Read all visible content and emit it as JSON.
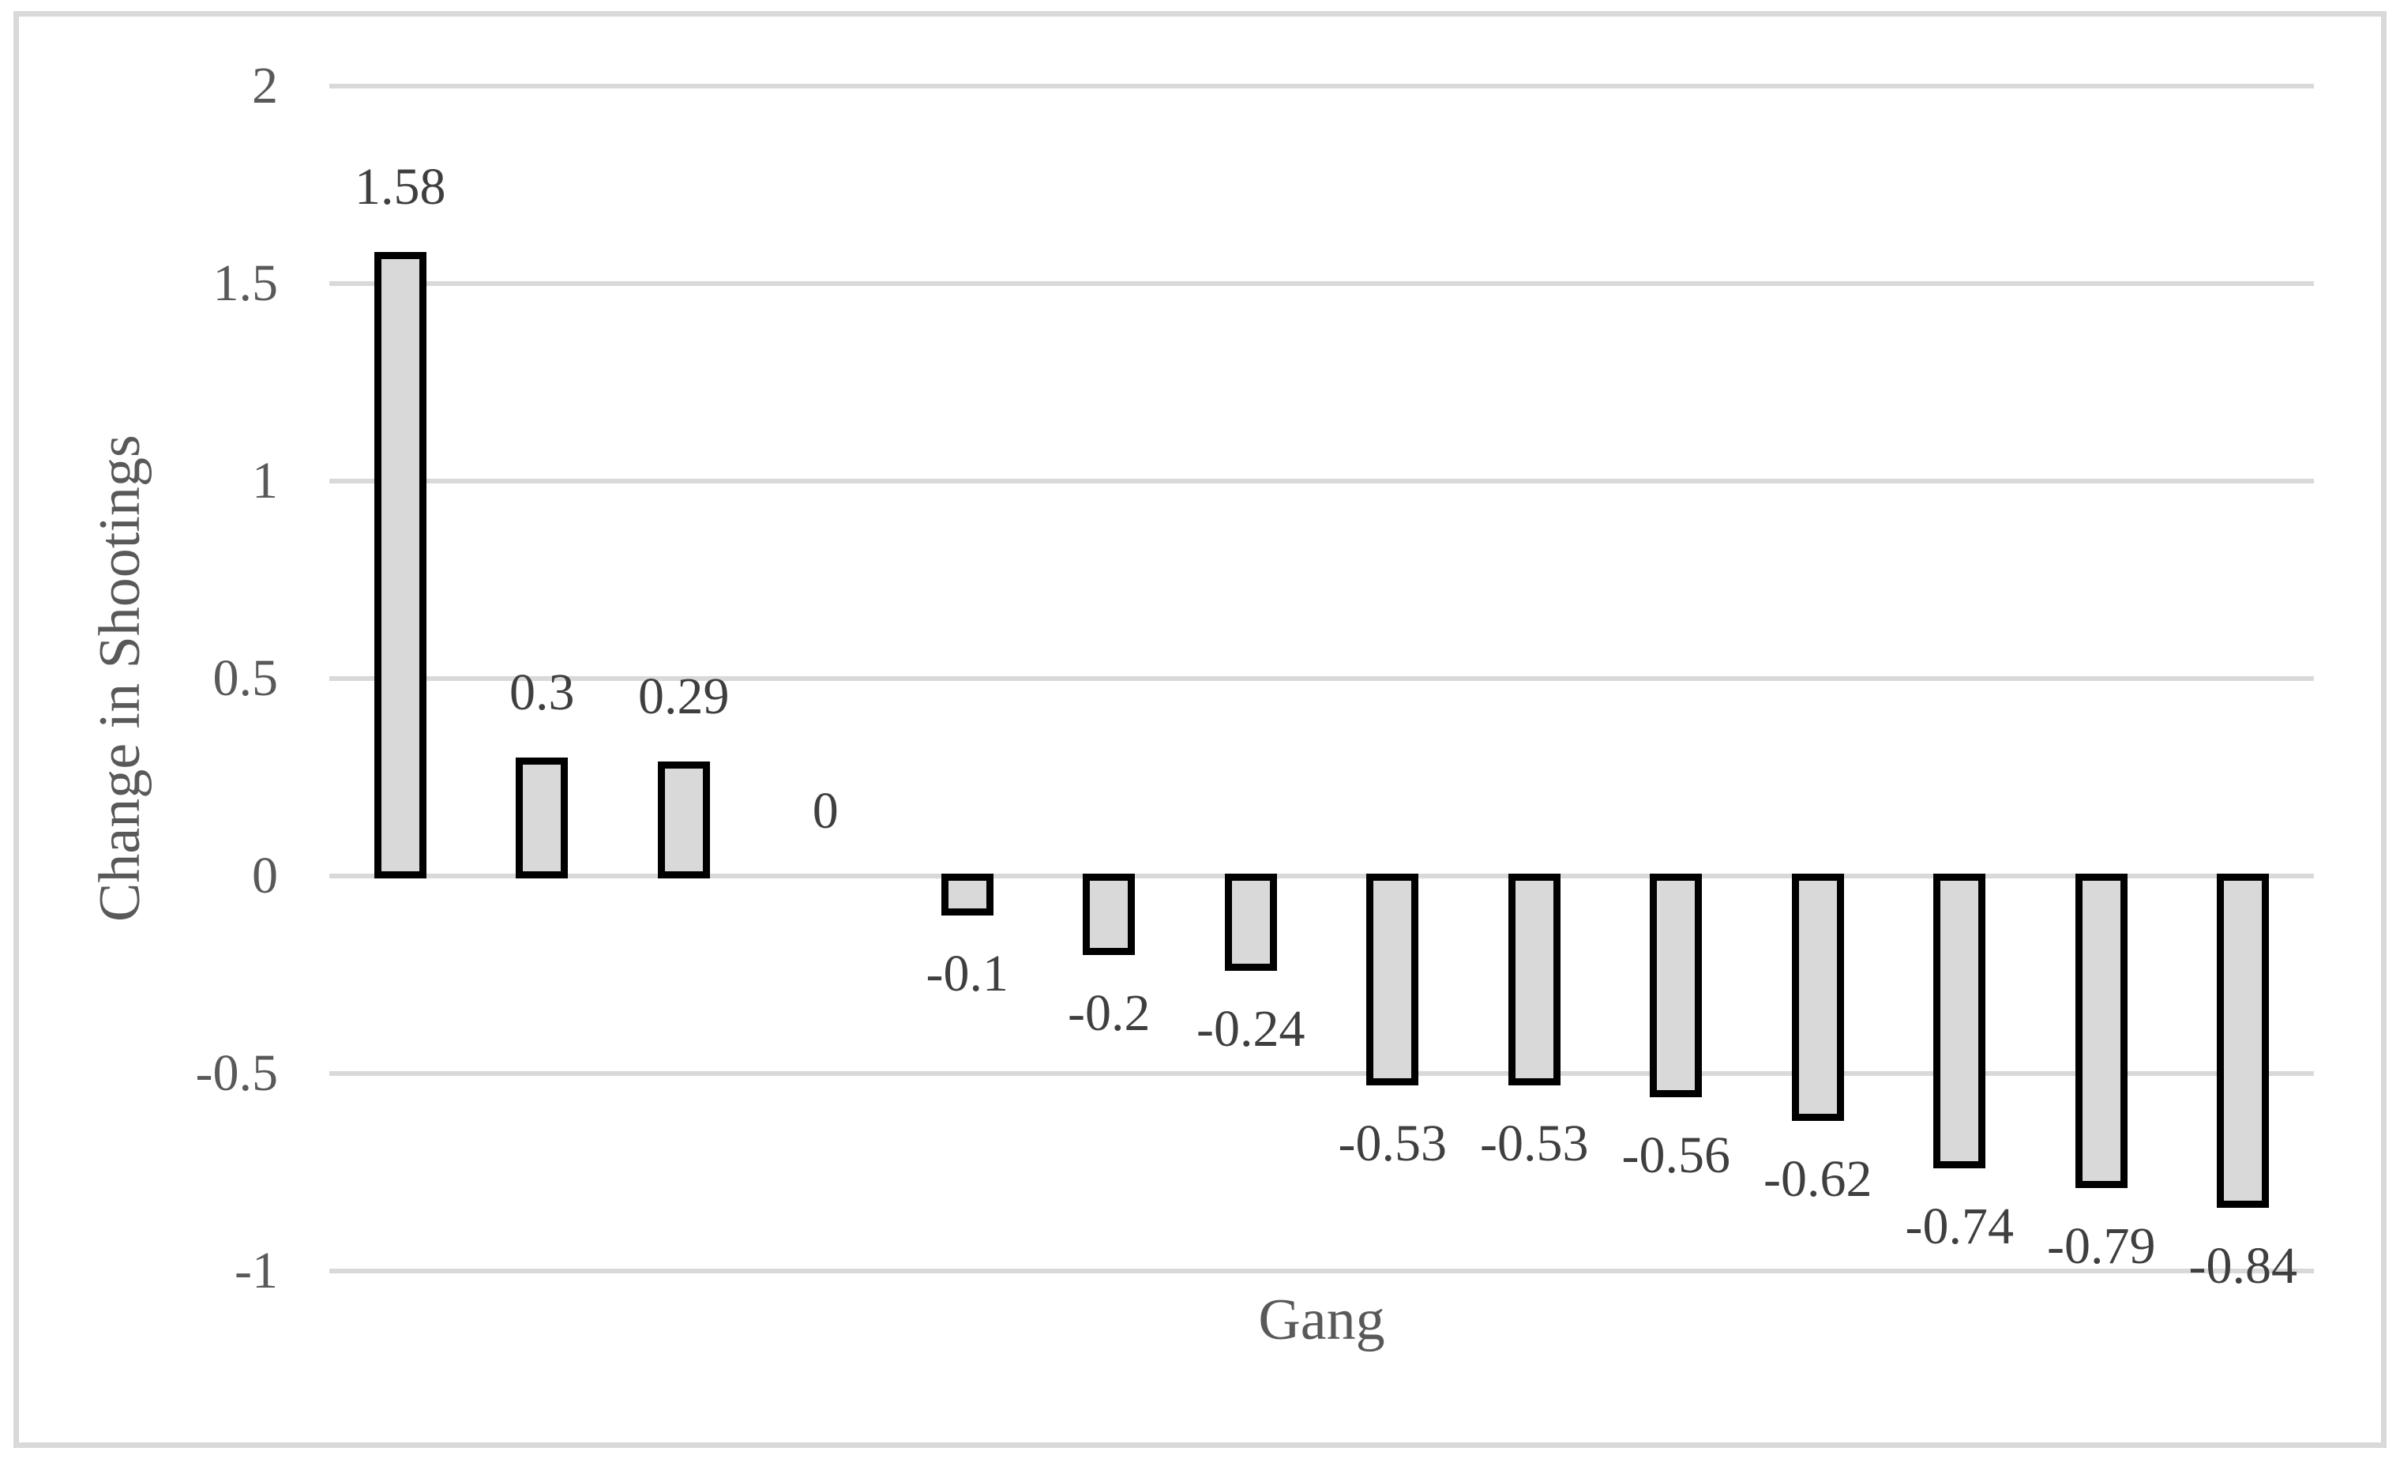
{
  "chart_data": {
    "type": "bar",
    "title": "",
    "xlabel": "Gang",
    "ylabel": "Change in Shootings",
    "values": [
      1.58,
      0.3,
      0.29,
      0,
      -0.1,
      -0.2,
      -0.24,
      -0.53,
      -0.53,
      -0.56,
      -0.62,
      -0.74,
      -0.79,
      -0.84
    ],
    "data_labels": [
      "1.58",
      "0.3",
      "0.29",
      "0",
      "-0.1",
      "-0.2",
      "-0.24",
      "-0.53",
      "-0.53",
      "-0.56",
      "-0.62",
      "-0.74",
      "-0.79",
      "-0.84"
    ],
    "y_ticks": [
      2,
      1.5,
      1,
      0.5,
      0,
      -0.5,
      -1
    ],
    "y_tick_labels": [
      "2",
      "1.5",
      "1",
      "0.5",
      "0",
      "-0.5",
      "-1"
    ],
    "ylim": [
      -1,
      2
    ],
    "grid": "horizontal",
    "legend": "none",
    "colors": {
      "bar_fill": "#d9d9d9",
      "bar_border": "#000000",
      "gridline": "#d9d9d9",
      "frame_border": "#d9d9d9",
      "tick_text": "#595959",
      "label_text": "#3f3f3f"
    }
  }
}
